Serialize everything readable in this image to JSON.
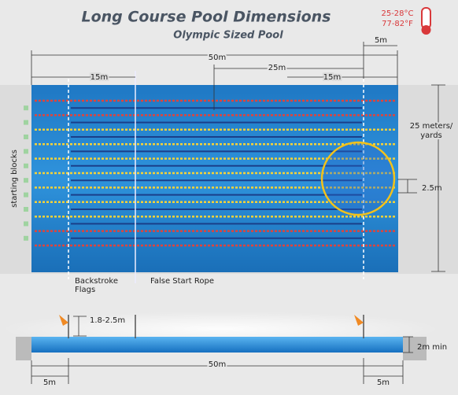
{
  "header": {
    "title": "Long Course Pool Dimensions",
    "subtitle": "Olympic Sized Pool"
  },
  "temperature": {
    "celsius": "25-28°C",
    "fahrenheit": "77-82°F"
  },
  "top_view": {
    "dimensions": {
      "flag_distance": "5m",
      "length": "50m",
      "half_length": "25m",
      "rope_distance_left": "15m",
      "rope_distance_right": "15m",
      "width": [
        "25 meters/",
        "yards"
      ],
      "lane_width": "2.5m"
    },
    "labels": {
      "starting_blocks": "starting blocks",
      "backstroke_flags": [
        "Backstroke",
        "Flags"
      ],
      "false_start_rope": "False Start Rope"
    }
  },
  "side_view": {
    "rope_height": "1.8-2.5m",
    "depth": "2m min",
    "length": "50m",
    "flag_distance_left": "5m",
    "flag_distance_right": "5m"
  }
}
